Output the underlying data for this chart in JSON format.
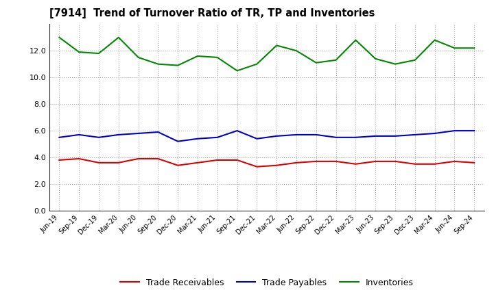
{
  "title": "[7914]  Trend of Turnover Ratio of TR, TP and Inventories",
  "x_labels": [
    "Jun-19",
    "Sep-19",
    "Dec-19",
    "Mar-20",
    "Jun-20",
    "Sep-20",
    "Dec-20",
    "Mar-21",
    "Jun-21",
    "Sep-21",
    "Dec-21",
    "Mar-22",
    "Jun-22",
    "Sep-22",
    "Dec-22",
    "Mar-23",
    "Jun-23",
    "Sep-23",
    "Dec-23",
    "Mar-24",
    "Jun-24",
    "Sep-24"
  ],
  "trade_receivables": [
    3.8,
    3.9,
    3.6,
    3.6,
    3.9,
    3.9,
    3.4,
    3.6,
    3.8,
    3.8,
    3.3,
    3.4,
    3.6,
    3.7,
    3.7,
    3.5,
    3.7,
    3.7,
    3.5,
    3.5,
    3.7,
    3.6
  ],
  "trade_payables": [
    5.5,
    5.7,
    5.5,
    5.7,
    5.8,
    5.9,
    5.2,
    5.4,
    5.5,
    6.0,
    5.4,
    5.6,
    5.7,
    5.7,
    5.5,
    5.5,
    5.6,
    5.6,
    5.7,
    5.8,
    6.0,
    6.0
  ],
  "inventories": [
    13.0,
    11.9,
    11.8,
    13.0,
    11.5,
    11.0,
    10.9,
    11.6,
    11.5,
    10.5,
    11.0,
    12.4,
    12.0,
    11.1,
    11.3,
    12.8,
    11.4,
    11.0,
    11.3,
    12.8,
    12.2,
    12.2
  ],
  "color_tr": "#dd0000",
  "color_tp": "#0000cc",
  "color_inv": "#008800",
  "ylim": [
    0,
    14
  ],
  "yticks": [
    0.0,
    2.0,
    4.0,
    6.0,
    8.0,
    10.0,
    12.0
  ],
  "legend_labels": [
    "Trade Receivables",
    "Trade Payables",
    "Inventories"
  ],
  "background_color": "#ffffff",
  "grid_color": "#aaaaaa"
}
